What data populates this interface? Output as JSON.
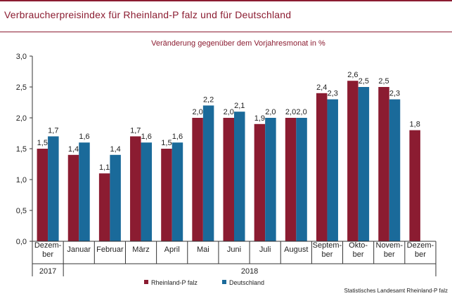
{
  "title": "Verbraucherpreisindex für Rheinland-P falz und für Deutschland",
  "chart_data": {
    "type": "bar",
    "subtitle": "Veränderung gegenüber dem Vorjahresmonat in %",
    "categories": [
      [
        "Dezem-",
        "ber"
      ],
      [
        "Januar"
      ],
      [
        "Februar"
      ],
      [
        "März"
      ],
      [
        "April"
      ],
      [
        "Mai"
      ],
      [
        "Juni"
      ],
      [
        "Juli"
      ],
      [
        "August"
      ],
      [
        "Septem-",
        "ber"
      ],
      [
        "Okto-",
        "ber"
      ],
      [
        "Novem-",
        "ber"
      ],
      [
        "Dezem-",
        "ber"
      ]
    ],
    "year_groups": [
      {
        "label": "2017",
        "start": 0,
        "end": 0
      },
      {
        "label": "2018",
        "start": 1,
        "end": 12
      }
    ],
    "series": [
      {
        "name": "Rheinland-P falz",
        "color": "#8b1c31",
        "values": [
          1.5,
          1.4,
          1.1,
          1.7,
          1.5,
          2.0,
          2.0,
          1.9,
          2.0,
          2.4,
          2.6,
          2.5,
          1.8
        ],
        "labels": [
          "1,5",
          "1,4",
          "1,1",
          "1,7",
          "1,5",
          "2,0",
          "2,0",
          "1,9",
          "2,0",
          "2,4",
          "2,6",
          "2,5",
          "1,8"
        ]
      },
      {
        "name": "Deutschland",
        "color": "#1a6a9a",
        "values": [
          1.7,
          1.6,
          1.4,
          1.6,
          1.6,
          2.2,
          2.1,
          2.0,
          2.0,
          2.3,
          2.5,
          2.3,
          null
        ],
        "labels": [
          "1,7",
          "1,6",
          "1,4",
          "1,6",
          "1,6",
          "2,2",
          "2,1",
          "2,0",
          "2,0",
          "2,3",
          "2,5",
          "2,3",
          ""
        ]
      }
    ],
    "ylim": [
      0,
      3.0
    ],
    "yticks": [
      0,
      0.5,
      1.0,
      1.5,
      2.0,
      2.5,
      3.0
    ],
    "ytick_labels": [
      "0,0",
      "0,5",
      "1,0",
      "1,5",
      "2,0",
      "2,5",
      "3,0"
    ],
    "legend_position": "bottom",
    "grid": false
  },
  "source": "Statistisches Landesamt Rheinland-P falz"
}
